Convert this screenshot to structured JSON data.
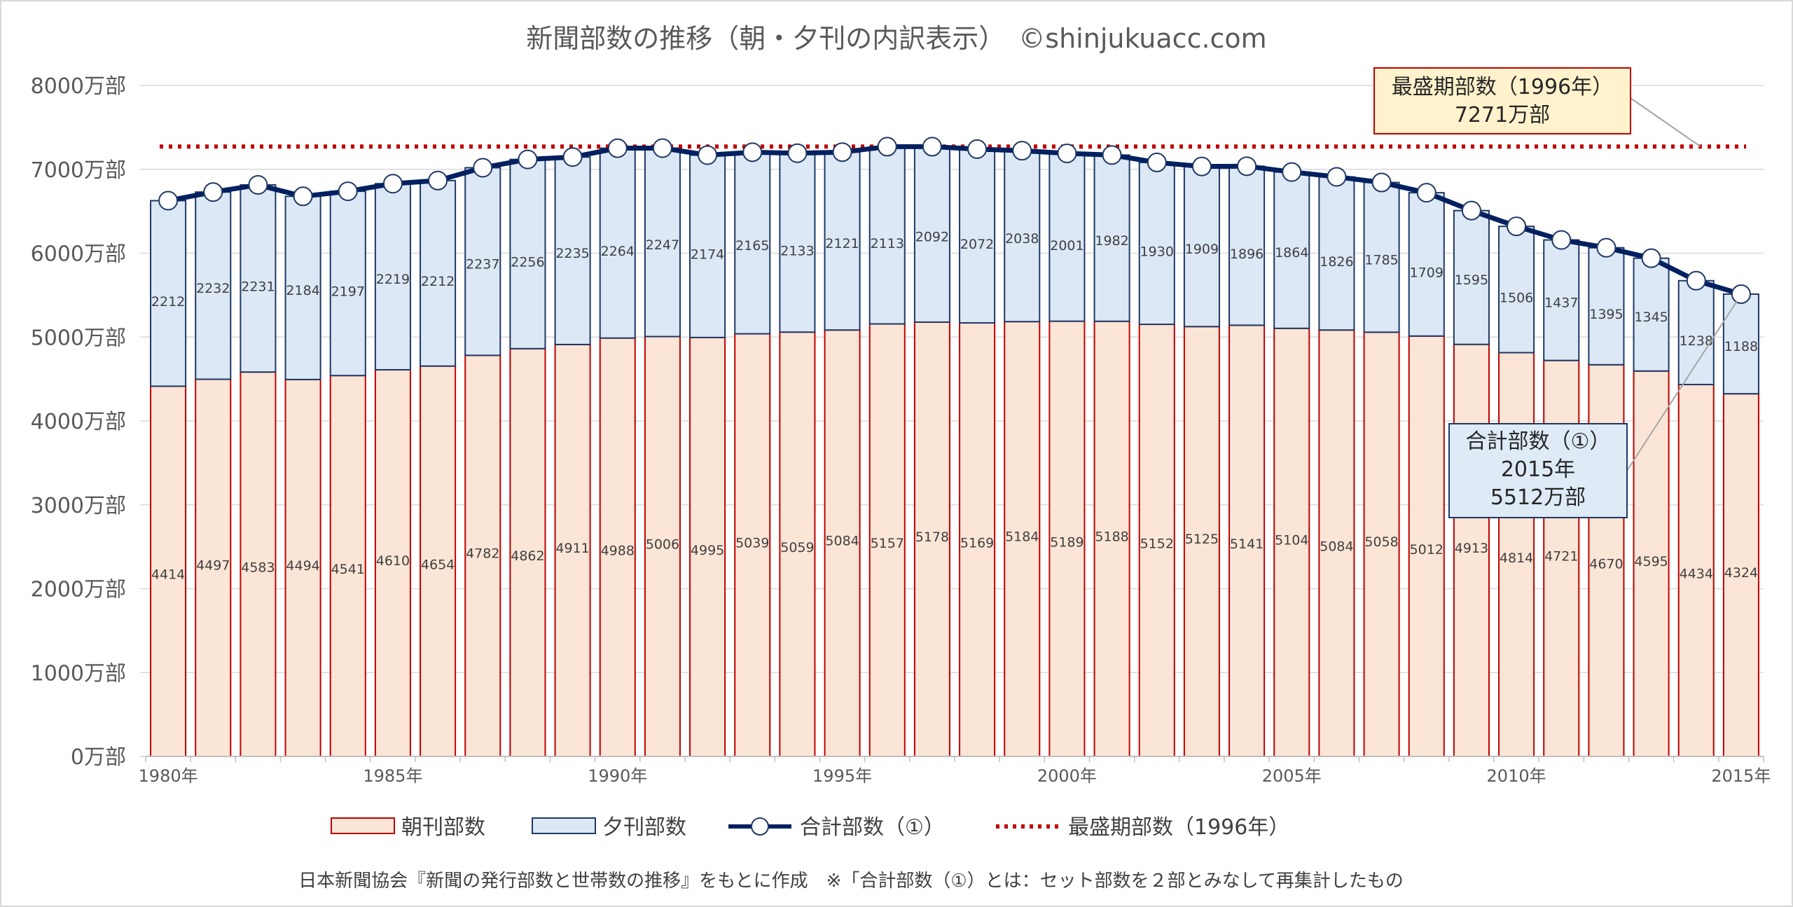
{
  "chart_data": {
    "type": "bar",
    "stacked": true,
    "title": "新聞部数の推移（朝・夕刊の内訳表示）　©shinjukuacc.com",
    "categories": [
      "1980",
      "1981",
      "1982",
      "1983",
      "1984",
      "1985",
      "1986",
      "1987",
      "1988",
      "1989",
      "1990",
      "1991",
      "1992",
      "1993",
      "1994",
      "1995",
      "1996",
      "1997",
      "1998",
      "1999",
      "2000",
      "2001",
      "2002",
      "2003",
      "2004",
      "2005",
      "2006",
      "2007",
      "2008",
      "2009",
      "2010",
      "2011",
      "2012",
      "2013",
      "2014",
      "2015"
    ],
    "xtick_labels": [
      "1980年",
      "1985年",
      "1990年",
      "1995年",
      "2000年",
      "2005年",
      "2010年",
      "2015年"
    ],
    "xtick_index": [
      0,
      5,
      10,
      15,
      20,
      25,
      30,
      35
    ],
    "ytick_labels": [
      "0万部",
      "1000万部",
      "2000万部",
      "3000万部",
      "4000万部",
      "5000万部",
      "6000万部",
      "7000万部",
      "8000万部"
    ],
    "ytick_values": [
      0,
      1000,
      2000,
      3000,
      4000,
      5000,
      6000,
      7000,
      8000
    ],
    "ylim": [
      0,
      8000
    ],
    "series": [
      {
        "name": "朝刊部数",
        "kind": "bar",
        "color": "#fbe5d6",
        "edge": "#c00000",
        "values": [
          4414,
          4497,
          4583,
          4494,
          4541,
          4610,
          4654,
          4782,
          4862,
          4911,
          4988,
          5006,
          4995,
          5039,
          5059,
          5084,
          5157,
          5178,
          5169,
          5184,
          5189,
          5188,
          5152,
          5125,
          5141,
          5104,
          5084,
          5058,
          5012,
          4913,
          4814,
          4721,
          4670,
          4595,
          4434,
          4324
        ]
      },
      {
        "name": "夕刊部数",
        "kind": "bar",
        "color": "#dce8f6",
        "edge": "#1f3864",
        "values": [
          2212,
          2232,
          2231,
          2184,
          2197,
          2219,
          2212,
          2237,
          2256,
          2235,
          2264,
          2247,
          2174,
          2165,
          2133,
          2121,
          2113,
          2092,
          2072,
          2038,
          2001,
          1982,
          1930,
          1909,
          1896,
          1864,
          1826,
          1785,
          1709,
          1595,
          1506,
          1437,
          1395,
          1345,
          1238,
          1188
        ]
      },
      {
        "name": "合計部数（①）",
        "kind": "line",
        "color": "#002060",
        "values": [
          6626,
          6729,
          6814,
          6678,
          6738,
          6829,
          6866,
          7019,
          7118,
          7146,
          7252,
          7253,
          7169,
          7204,
          7192,
          7205,
          7270,
          7270,
          7241,
          7222,
          7190,
          7170,
          7082,
          7034,
          7037,
          6968,
          6910,
          6843,
          6721,
          6508,
          6320,
          6158,
          6065,
          5940,
          5672,
          5512
        ]
      },
      {
        "name": "最盛期部数（1996年）",
        "kind": "hline",
        "color": "#c00000",
        "value": 7271
      }
    ],
    "legend": {
      "position": "bottom",
      "items": [
        {
          "label": "朝刊部数",
          "icon": "bar-red-swatch"
        },
        {
          "label": "夕刊部数",
          "icon": "bar-blue-swatch"
        },
        {
          "label": "合計部数（①）",
          "icon": "line-marker"
        },
        {
          "label": "最盛期部数（1996年）",
          "icon": "dotted-line"
        }
      ]
    },
    "annotations": {
      "peak": {
        "line1": "最盛期部数（1996年）",
        "line2": "7271万部",
        "fill": "#fff2cc",
        "anchor_value": 7271
      },
      "total": {
        "line1": "合計部数（①）",
        "line2": "2015年",
        "line3": "5512万部",
        "fill": "#deebf7",
        "anchor_index": 35
      }
    },
    "footnote": "日本新聞協会『新聞の発行部数と世帯数の推移』をもとに作成　※「合計部数（①）とは：セット部数を２部とみなして再集計したもの"
  }
}
